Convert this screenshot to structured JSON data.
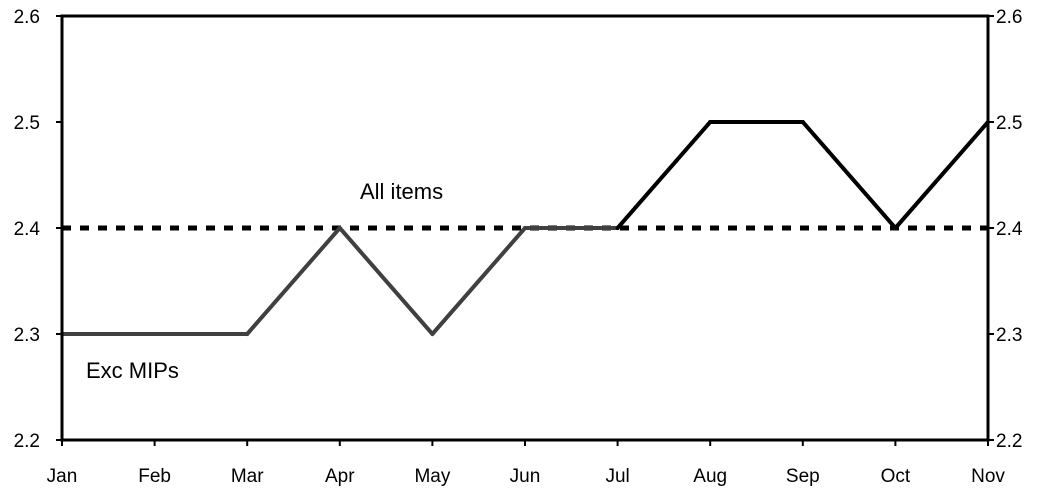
{
  "chart_data": {
    "type": "line",
    "categories": [
      "Jan",
      "Feb",
      "Mar",
      "Apr",
      "May",
      "Jun",
      "Jul",
      "Aug",
      "Sep",
      "Oct",
      "Nov"
    ],
    "series": [
      {
        "name": "All items",
        "style": "dotted",
        "color": "#000000",
        "values": [
          2.4,
          2.4,
          2.4,
          2.4,
          2.4,
          2.4,
          2.4,
          2.4,
          2.4,
          2.4,
          2.4
        ]
      },
      {
        "name": "Exc MIPs",
        "style": "solid",
        "color": "#404040",
        "color_after_jul": "#000000",
        "values": [
          2.3,
          2.3,
          2.3,
          2.4,
          2.3,
          2.4,
          2.4,
          2.5,
          2.5,
          2.4,
          2.5
        ]
      }
    ],
    "ylim": [
      2.2,
      2.6
    ],
    "yticks": [
      "2.2",
      "2.3",
      "2.4",
      "2.5",
      "2.6"
    ],
    "y_axis_both_sides": true,
    "grid": false,
    "annotations": [
      "All items",
      "Exc MIPs"
    ]
  }
}
